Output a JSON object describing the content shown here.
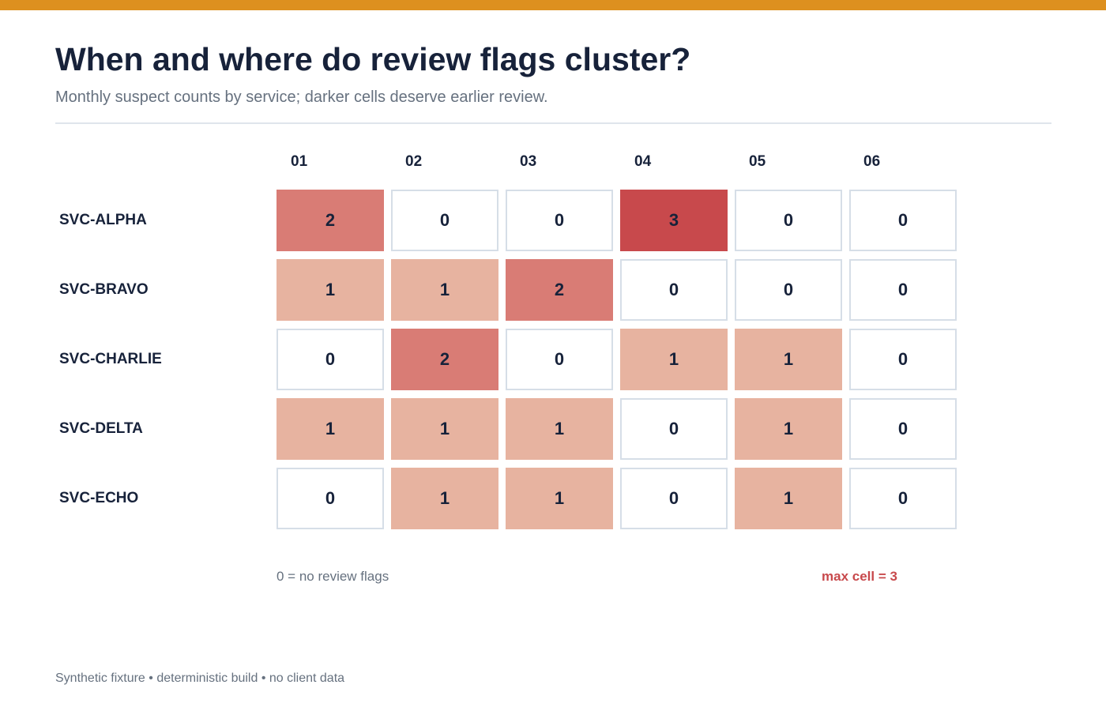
{
  "header": {
    "title": "When and where do review flags cluster?",
    "subtitle": "Monthly suspect counts by service; darker cells deserve earlier review."
  },
  "legend": {
    "zero_note": "0 = no review flags",
    "max_note": "max cell = 3"
  },
  "footer": {
    "text": "Synthetic fixture • deterministic build • no client data"
  },
  "colors": {
    "accent_bar": "#dd901f",
    "level_0": "#ffffff",
    "level_1": "#e7b3a0",
    "level_2": "#d97c75",
    "level_3": "#c8494c",
    "max_note": "#c8494c"
  },
  "chart_data": {
    "type": "heatmap",
    "title": "When and where do review flags cluster?",
    "subtitle": "Monthly suspect counts by service; darker cells deserve earlier review.",
    "columns": [
      "01",
      "02",
      "03",
      "04",
      "05",
      "06"
    ],
    "rows": [
      "SVC-ALPHA",
      "SVC-BRAVO",
      "SVC-CHARLIE",
      "SVC-DELTA",
      "SVC-ECHO"
    ],
    "values": [
      [
        2,
        0,
        0,
        3,
        0,
        0
      ],
      [
        1,
        1,
        2,
        0,
        0,
        0
      ],
      [
        0,
        2,
        0,
        1,
        1,
        0
      ],
      [
        1,
        1,
        1,
        0,
        1,
        0
      ],
      [
        0,
        1,
        1,
        0,
        1,
        0
      ]
    ],
    "value_range": [
      0,
      3
    ]
  }
}
